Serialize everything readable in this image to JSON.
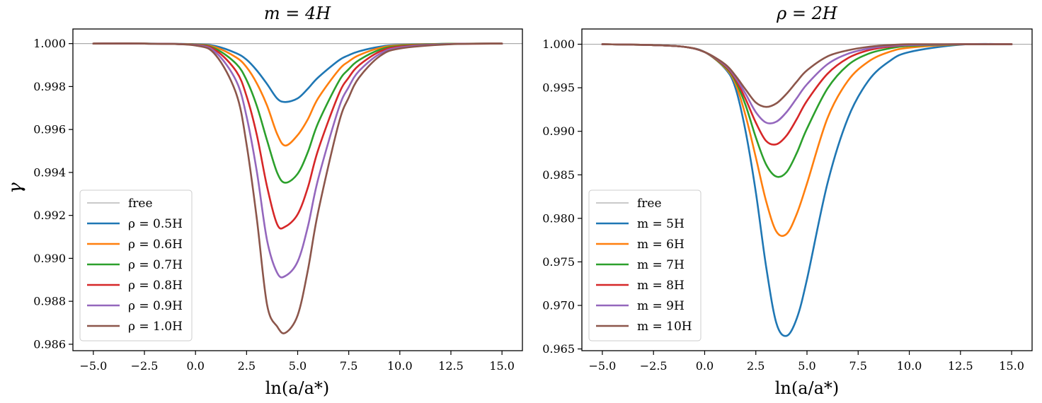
{
  "chart_data": [
    {
      "type": "line",
      "title": "m = 4H",
      "xlabel": "ln(a/a*)",
      "ylabel": "γ",
      "xlim": [
        -6.0,
        16.0
      ],
      "ylim": [
        0.9857,
        1.00068
      ],
      "x_ticks": [
        -5.0,
        -2.5,
        0.0,
        2.5,
        5.0,
        7.5,
        10.0,
        12.5,
        15.0
      ],
      "x_tick_labels": [
        "−5.0",
        "−2.5",
        "0.0",
        "2.5",
        "5.0",
        "7.5",
        "10.0",
        "12.5",
        "15.0"
      ],
      "y_ticks": [
        0.986,
        0.988,
        0.99,
        0.992,
        0.994,
        0.996,
        0.998,
        1.0
      ],
      "y_tick_labels": [
        "0.986",
        "0.988",
        "0.990",
        "0.992",
        "0.994",
        "0.996",
        "0.998",
        "1.000"
      ],
      "grid": false,
      "legend_position": "lower-left",
      "reference_line": {
        "name": "free",
        "y": 1.0,
        "color": "#aaaaaa"
      },
      "x": [
        -5.0,
        -2.5,
        0.0,
        1.0,
        2.0,
        2.5,
        3.0,
        3.5,
        4.0,
        4.4,
        5.0,
        5.5,
        6.0,
        7.0,
        7.5,
        8.0,
        9.0,
        10.0,
        12.5,
        15.0
      ],
      "series": [
        {
          "name": "ρ = 0.5H",
          "color": "#1f77b4",
          "values": [
            1.0,
            1.0,
            0.99997,
            0.99988,
            0.99955,
            0.99925,
            0.99875,
            0.99812,
            0.99744,
            0.99728,
            0.99745,
            0.9979,
            0.99842,
            0.99921,
            0.99946,
            0.99964,
            0.99985,
            0.99994,
            0.99999,
            1.0
          ]
        },
        {
          "name": "ρ = 0.6H",
          "color": "#ff7f0e",
          "values": [
            1.0,
            1.0,
            0.99996,
            0.99982,
            0.99935,
            0.9989,
            0.99815,
            0.99712,
            0.99578,
            0.99525,
            0.99574,
            0.99648,
            0.99745,
            0.99876,
            0.99917,
            0.99946,
            0.99979,
            0.99992,
            0.99999,
            1.0
          ]
        },
        {
          "name": "ρ = 0.7H",
          "color": "#2ca02c",
          "values": [
            1.0,
            1.0,
            0.99995,
            0.99975,
            0.99905,
            0.9983,
            0.9971,
            0.9955,
            0.99398,
            0.99352,
            0.99394,
            0.99495,
            0.9963,
            0.99822,
            0.99881,
            0.99923,
            0.99971,
            0.99989,
            0.99999,
            1.0
          ]
        },
        {
          "name": "ρ = 0.8H",
          "color": "#d62728",
          "values": [
            1.0,
            1.0,
            0.99994,
            0.99968,
            0.9987,
            0.99755,
            0.99575,
            0.99335,
            0.99158,
            0.99148,
            0.99205,
            0.9933,
            0.99504,
            0.99762,
            0.99842,
            0.99899,
            0.99962,
            0.99986,
            0.99998,
            1.0
          ]
        },
        {
          "name": "ρ = 0.9H",
          "color": "#9467bd",
          "values": [
            1.0,
            1.0,
            0.99993,
            0.99958,
            0.99825,
            0.9966,
            0.99405,
            0.99085,
            0.98932,
            0.98918,
            0.98985,
            0.99148,
            0.99368,
            0.99696,
            0.99798,
            0.99872,
            0.99951,
            0.99982,
            0.99998,
            1.0
          ]
        },
        {
          "name": "ρ = 1.0H",
          "color": "#8c564b",
          "values": [
            1.0,
            1.0,
            0.99991,
            0.99945,
            0.99765,
            0.9953,
            0.99185,
            0.98785,
            0.98682,
            0.98653,
            0.98735,
            0.98945,
            0.99215,
            0.99625,
            0.99749,
            0.99841,
            0.9994,
            0.99977,
            0.99997,
            1.0
          ]
        }
      ]
    },
    {
      "type": "line",
      "title": "ρ = 2H",
      "xlabel": "ln(a/a*)",
      "ylabel": "",
      "xlim": [
        -6.0,
        16.0
      ],
      "ylim": [
        0.9648,
        1.00175
      ],
      "x_ticks": [
        -5.0,
        -2.5,
        0.0,
        2.5,
        5.0,
        7.5,
        10.0,
        12.5,
        15.0
      ],
      "x_tick_labels": [
        "−5.0",
        "−2.5",
        "0.0",
        "2.5",
        "5.0",
        "7.5",
        "10.0",
        "12.5",
        "15.0"
      ],
      "y_ticks": [
        0.965,
        0.97,
        0.975,
        0.98,
        0.985,
        0.99,
        0.995,
        1.0
      ],
      "y_tick_labels": [
        "0.965",
        "0.970",
        "0.975",
        "0.980",
        "0.985",
        "0.990",
        "0.995",
        "1.000"
      ],
      "grid": false,
      "legend_position": "lower-left",
      "reference_line": {
        "name": "free",
        "y": 1.0,
        "color": "#aaaaaa"
      },
      "x": [
        -5.0,
        -2.5,
        -1.0,
        0.0,
        1.0,
        1.5,
        2.0,
        2.5,
        3.0,
        3.5,
        4.0,
        4.5,
        5.0,
        6.0,
        7.0,
        8.0,
        9.0,
        10.0,
        12.5,
        15.0
      ],
      "series": [
        {
          "name": "m = 5H",
          "color": "#1f77b4",
          "values": [
            1.0,
            0.9999,
            0.9997,
            0.9991,
            0.9972,
            0.995,
            0.99,
            0.983,
            0.9745,
            0.968,
            0.9665,
            0.9685,
            0.973,
            0.984,
            0.9915,
            0.9958,
            0.998,
            0.9991,
            0.99995,
            1.0
          ]
        },
        {
          "name": "m = 6H",
          "color": "#ff7f0e",
          "values": [
            1.0,
            0.9999,
            0.9997,
            0.9991,
            0.9973,
            0.9955,
            0.9918,
            0.987,
            0.982,
            0.9785,
            0.9782,
            0.9805,
            0.984,
            0.9915,
            0.9958,
            0.998,
            0.9991,
            0.9996,
            0.99998,
            1.0
          ]
        },
        {
          "name": "m = 7H",
          "color": "#2ca02c",
          "values": [
            1.0,
            0.9999,
            0.9997,
            0.9991,
            0.9974,
            0.9958,
            0.993,
            0.9893,
            0.9862,
            0.9848,
            0.9853,
            0.9875,
            0.9903,
            0.9949,
            0.9976,
            0.9989,
            0.9995,
            0.9998,
            0.99999,
            1.0
          ]
        },
        {
          "name": "m = 8H",
          "color": "#d62728",
          "values": [
            1.0,
            0.9999,
            0.9997,
            0.9991,
            0.9975,
            0.996,
            0.9937,
            0.991,
            0.9889,
            0.9885,
            0.9895,
            0.9914,
            0.9935,
            0.9966,
            0.9984,
            0.9993,
            0.9997,
            0.9999,
            1.0,
            1.0
          ]
        },
        {
          "name": "m = 9H",
          "color": "#9467bd",
          "values": [
            1.0,
            0.9999,
            0.9997,
            0.9991,
            0.9976,
            0.9962,
            0.9943,
            0.9922,
            0.991,
            0.9911,
            0.9922,
            0.9938,
            0.9954,
            0.9977,
            0.9989,
            0.9995,
            0.9998,
            0.9999,
            1.0,
            1.0
          ]
        },
        {
          "name": "m = 10H",
          "color": "#8c564b",
          "values": [
            1.0,
            0.9999,
            0.9997,
            0.9991,
            0.9977,
            0.9964,
            0.9948,
            0.9933,
            0.9928,
            0.9932,
            0.9943,
            0.9957,
            0.997,
            0.9986,
            0.9993,
            0.9997,
            0.9999,
            1.0,
            1.0,
            1.0
          ]
        }
      ]
    }
  ]
}
